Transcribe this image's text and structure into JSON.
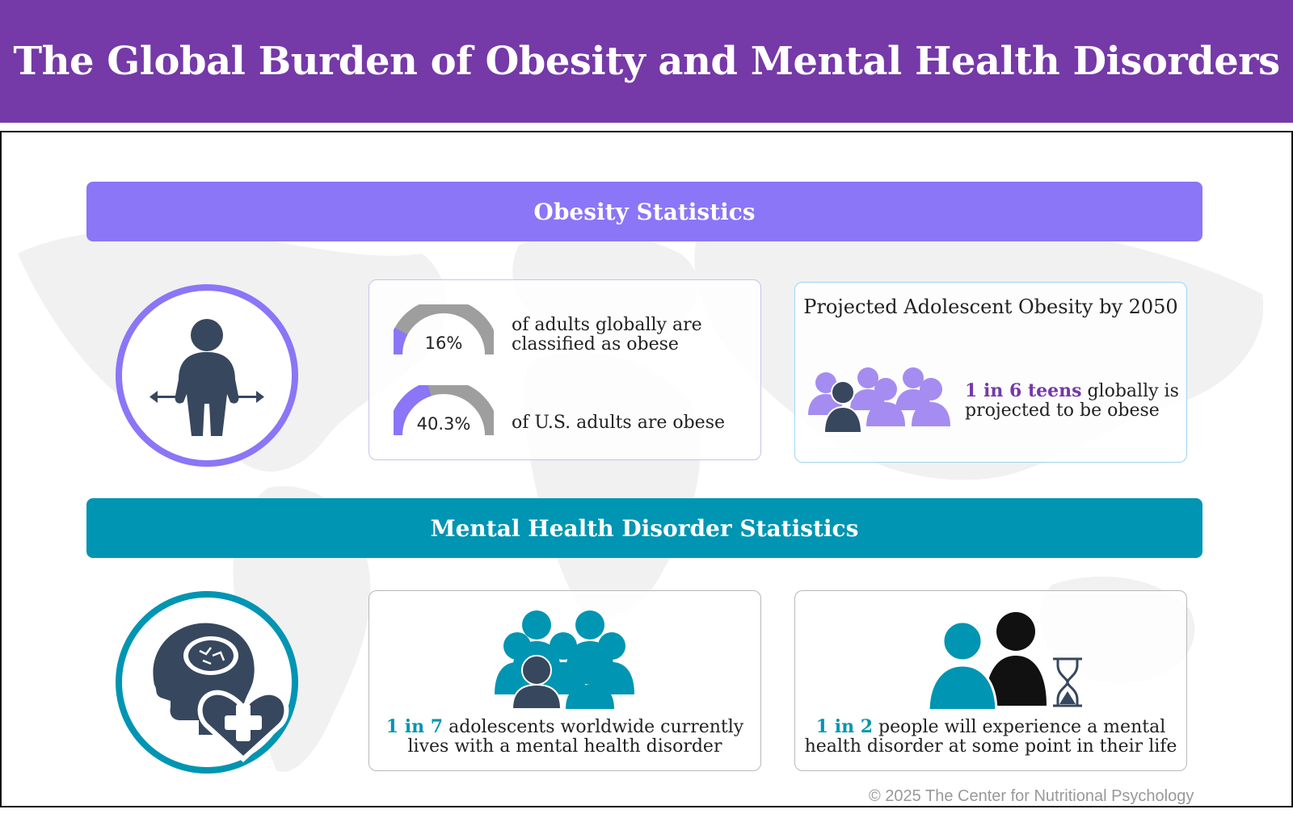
{
  "title": "The Global Burden of Obesity and Mental Health Disorders",
  "colors": {
    "header": "#7539a8",
    "obesity": "#8a76f7",
    "mental": "#0095b2",
    "dark_icon": "#37475e",
    "gauge_gray": "#9e9e9e"
  },
  "obesity": {
    "heading": "Obesity Statistics",
    "icon": "obese-person-icon",
    "stats": [
      {
        "percent_label": "16%",
        "value": 16,
        "text": "of adults globally are classified as obese"
      },
      {
        "percent_label": "40.3%",
        "value": 40.3,
        "text": "of U.S. adults are obese"
      }
    ],
    "projection": {
      "title": "Projected Adolescent Obesity by 2050",
      "highlight": "1 in 6 teens",
      "text": " globally is projected to be obese"
    }
  },
  "mental": {
    "heading": "Mental Health Disorder Statistics",
    "icon": "brain-head-heart-icon",
    "cards": [
      {
        "highlight": "1 in 7",
        "text": " adolescents worldwide currently lives with a mental health disorder"
      },
      {
        "highlight": "1 in 2",
        "text": " people will experience a mental health disorder at some point in their life"
      }
    ]
  },
  "footer": {
    "copyright": "© 2025 The Center for Nutritional Psychology"
  }
}
